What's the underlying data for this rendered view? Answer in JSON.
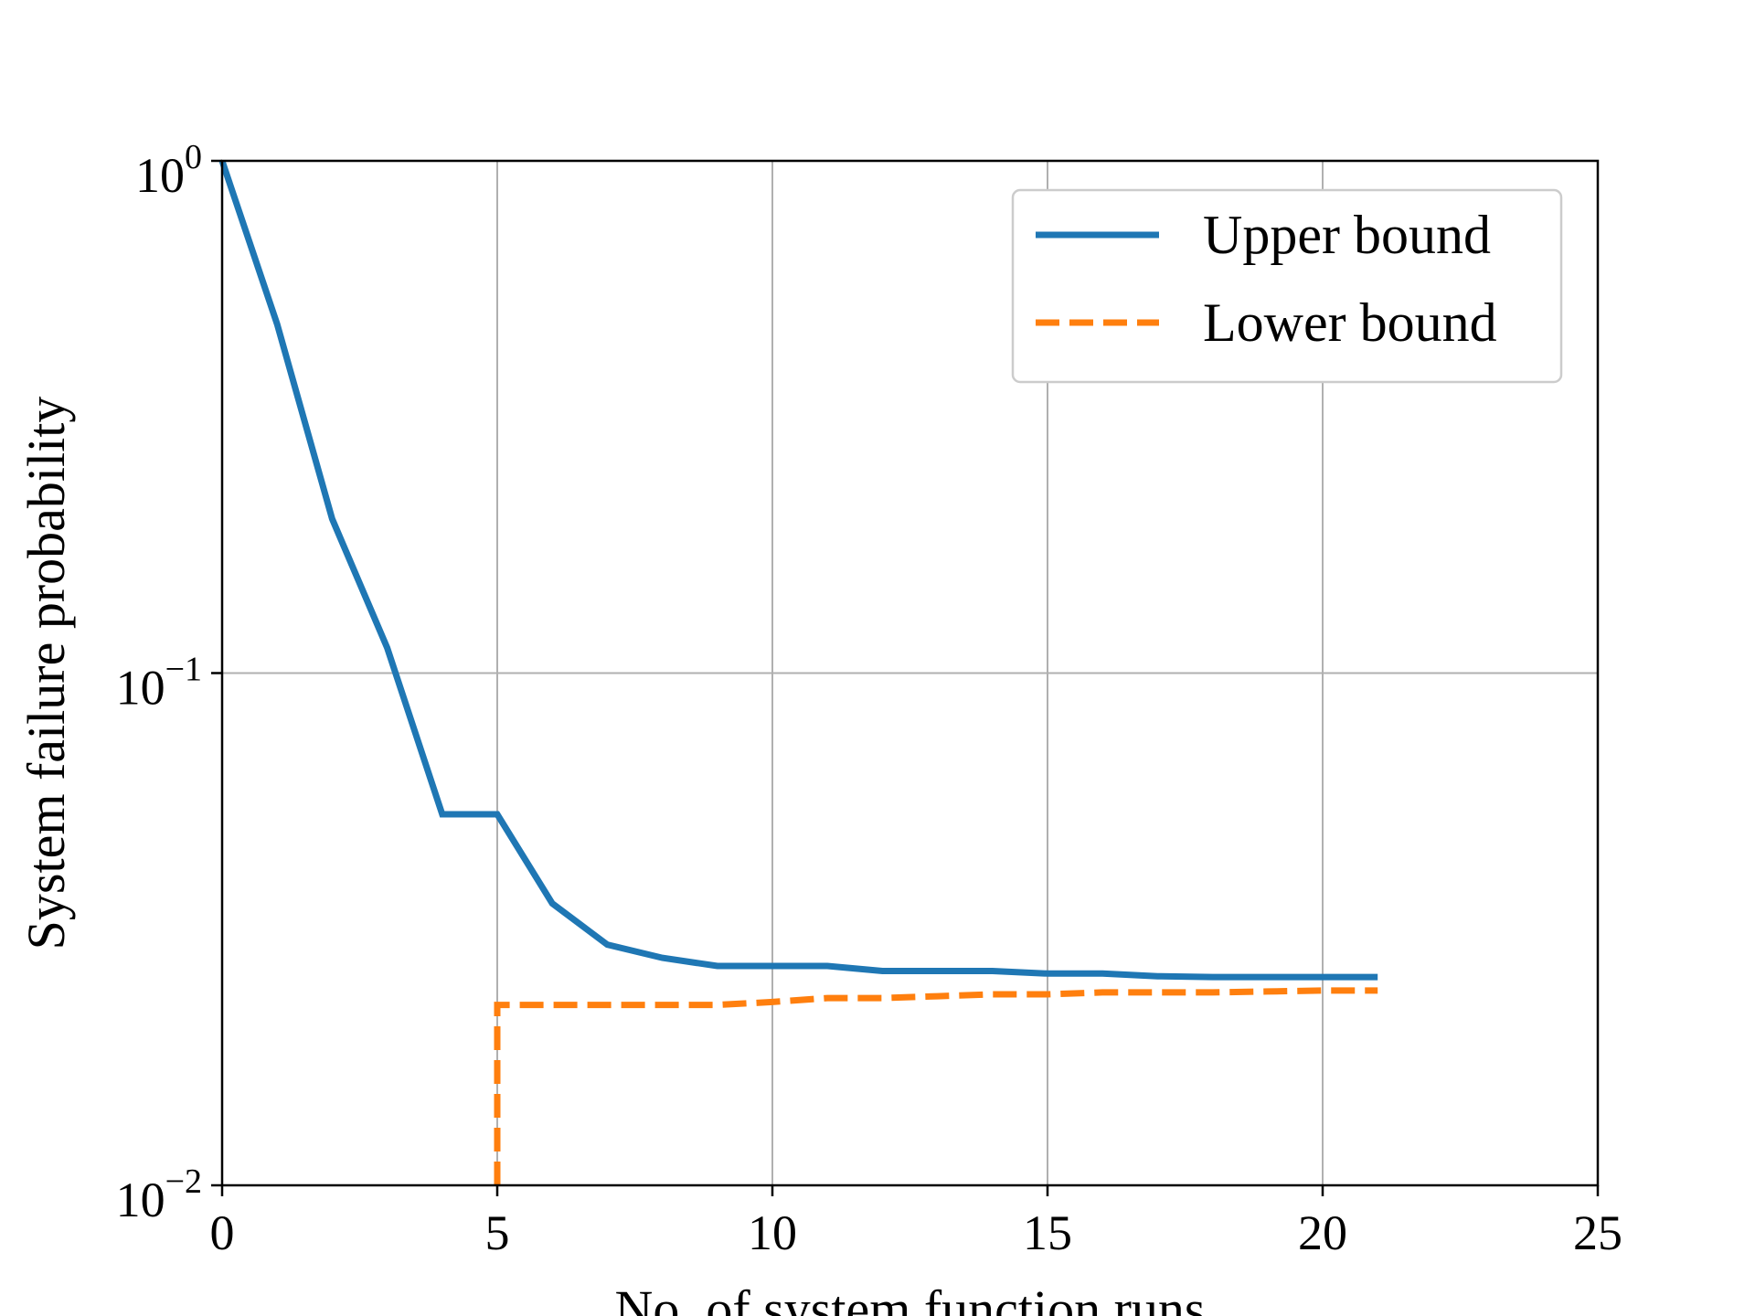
{
  "chart_data": {
    "type": "line",
    "title": "",
    "xlabel": "No. of system function runs",
    "ylabel": "System failure probability",
    "xlim": [
      0,
      25
    ],
    "ylim": [
      0.01,
      1
    ],
    "yscale": "log",
    "grid": true,
    "legend_position": "top-right",
    "x_ticks": [
      "0",
      "5",
      "10",
      "15",
      "20",
      "25"
    ],
    "x_tick_values": [
      0,
      5,
      10,
      15,
      20,
      25
    ],
    "y_ticks": [
      {
        "base": "10",
        "exp": "0",
        "value": 1
      },
      {
        "base": "10",
        "exp": "−1",
        "value": 0.1
      },
      {
        "base": "10",
        "exp": "−2",
        "value": 0.01
      }
    ],
    "series": [
      {
        "name": "Upper bound",
        "color": "#1f77b4",
        "style": "solid",
        "x": [
          0,
          1,
          2,
          3,
          4,
          5,
          6,
          7,
          8,
          9,
          10,
          11,
          12,
          13,
          14,
          15,
          16,
          17,
          18,
          19,
          20,
          21
        ],
        "y": [
          1.0,
          0.48,
          0.2,
          0.112,
          0.053,
          0.053,
          0.0355,
          0.0295,
          0.0278,
          0.0268,
          0.0268,
          0.0268,
          0.0262,
          0.0262,
          0.0262,
          0.0259,
          0.0259,
          0.0256,
          0.0255,
          0.0255,
          0.0255,
          0.0255
        ]
      },
      {
        "name": "Lower bound",
        "color": "#ff7f0e",
        "style": "dashed",
        "x": [
          5,
          5,
          6,
          7,
          8,
          9,
          10,
          11,
          12,
          13,
          14,
          15,
          16,
          17,
          18,
          19,
          20,
          21
        ],
        "y": [
          0.01,
          0.0225,
          0.0225,
          0.0225,
          0.0225,
          0.0225,
          0.0228,
          0.0232,
          0.0232,
          0.0234,
          0.0236,
          0.0236,
          0.0238,
          0.0238,
          0.0238,
          0.0239,
          0.024,
          0.024
        ]
      }
    ]
  }
}
